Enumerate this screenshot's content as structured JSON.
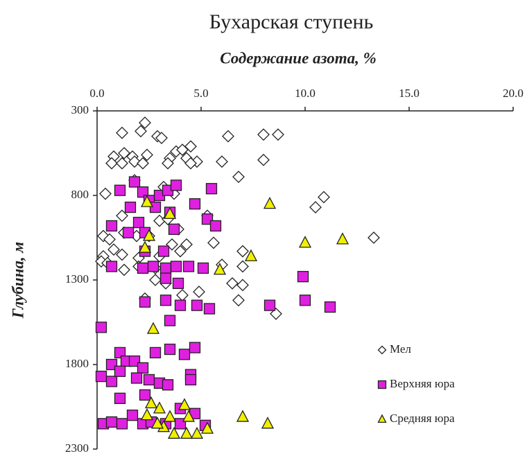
{
  "chart_data": {
    "type": "scatter",
    "title": "Бухарская ступень",
    "x_label": "Содержание азота, %",
    "y_label": "Глубина, м",
    "xlim": [
      0,
      20
    ],
    "ylim": [
      300,
      2300
    ],
    "y_inverted": true,
    "x_axis_position": "top",
    "legend": "right",
    "xticks": [
      {
        "value": 0,
        "label": "0.0"
      },
      {
        "value": 5,
        "label": "5.0"
      },
      {
        "value": 10,
        "label": "10.0"
      },
      {
        "value": 15,
        "label": "15.0"
      },
      {
        "value": 20,
        "label": "20.0"
      }
    ],
    "yticks": [
      300,
      800,
      1300,
      1800,
      2300
    ],
    "series": [
      {
        "name": "Мел",
        "marker": "diamond",
        "color": "#ffffff",
        "x": [
          2.3,
          2.1,
          1.2,
          2.9,
          3.1,
          6.3,
          8.0,
          8.7,
          3.8,
          4.1,
          4.5,
          0.8,
          1.3,
          1.7,
          2.4,
          3.5,
          4.3,
          4.8,
          0.7,
          1.2,
          1.8,
          2.2,
          3.4,
          4.5,
          6.0,
          8.0,
          6.8,
          0.4,
          1.8,
          3.2,
          3.7,
          10.9,
          10.5,
          1.2,
          3.0,
          3.4,
          3.9,
          5.3,
          0.3,
          0.6,
          1.3,
          1.9,
          2.5,
          3.6,
          4.3,
          5.6,
          13.3,
          0.3,
          0.8,
          1.2,
          2.0,
          3.0,
          4.0,
          7.0,
          0.2,
          0.5,
          1.3,
          2.0,
          2.8,
          6.0,
          7.0,
          2.8,
          3.3,
          6.5,
          7.0,
          4.1,
          4.9,
          6.8,
          8.6,
          2.3
        ],
        "values": [
          370,
          420,
          430,
          450,
          460,
          450,
          440,
          440,
          540,
          530,
          510,
          570,
          550,
          570,
          560,
          580,
          580,
          600,
          610,
          610,
          600,
          610,
          610,
          610,
          600,
          590,
          690,
          790,
          710,
          750,
          790,
          810,
          870,
          920,
          950,
          940,
          1000,
          920,
          1040,
          1060,
          1020,
          1040,
          1040,
          1090,
          1090,
          1080,
          1050,
          1160,
          1120,
          1150,
          1170,
          1160,
          1130,
          1130,
          1190,
          1200,
          1240,
          1220,
          1230,
          1210,
          1220,
          1300,
          1320,
          1320,
          1330,
          1390,
          1370,
          1420,
          1500,
          1410
        ]
      },
      {
        "name": "Верхняя юра",
        "marker": "square",
        "color": "#e020e0",
        "x": [
          1.1,
          1.8,
          2.2,
          3.0,
          3.4,
          3.8,
          5.5,
          4.7,
          2.5,
          1.6,
          2.0,
          2.8,
          3.5,
          5.3,
          5.7,
          1.5,
          0.7,
          2.3,
          3.7,
          3.2,
          2.3,
          0.7,
          2.2,
          2.7,
          3.3,
          3.8,
          4.4,
          5.1,
          9.9,
          3.3,
          3.9,
          2.3,
          3.3,
          4.0,
          4.8,
          5.4,
          8.3,
          10.0,
          11.2,
          3.5,
          0.2,
          1.1,
          0.7,
          1.4,
          1.8,
          2.2,
          2.8,
          3.5,
          4.2,
          4.7,
          0.2,
          0.7,
          1.1,
          1.9,
          2.5,
          3.0,
          3.4,
          4.5,
          4.5,
          1.1,
          2.3,
          4.0,
          0.3,
          0.7,
          1.2,
          1.7,
          2.2,
          2.6,
          3.3,
          4.0,
          5.2,
          4.7
        ],
        "values": [
          770,
          720,
          780,
          800,
          770,
          740,
          760,
          850,
          830,
          870,
          960,
          870,
          900,
          940,
          980,
          1020,
          980,
          1020,
          1000,
          1130,
          1130,
          1220,
          1230,
          1220,
          1230,
          1220,
          1220,
          1230,
          1280,
          1290,
          1320,
          1430,
          1420,
          1450,
          1450,
          1470,
          1450,
          1420,
          1460,
          1540,
          1580,
          1730,
          1800,
          1780,
          1780,
          1820,
          1730,
          1710,
          1740,
          1700,
          1870,
          1900,
          1840,
          1880,
          1890,
          1910,
          1920,
          1860,
          1890,
          2000,
          1980,
          2060,
          2150,
          2140,
          2150,
          2100,
          2150,
          2140,
          2150,
          2150,
          2160,
          2090
        ]
      },
      {
        "name": "Средняя юра",
        "marker": "triangle",
        "color": "#f0f000",
        "x": [
          2.4,
          3.5,
          8.3,
          2.5,
          2.3,
          10.0,
          11.8,
          7.4,
          5.9,
          2.7,
          2.6,
          4.2,
          3.0,
          2.4,
          3.5,
          4.4,
          7.0,
          8.2,
          3.2,
          3.7,
          4.3,
          4.8,
          5.3,
          2.9
        ],
        "values": [
          840,
          910,
          850,
          1040,
          1110,
          1080,
          1060,
          1160,
          1240,
          1590,
          2030,
          2040,
          2060,
          2100,
          2110,
          2110,
          2110,
          2150,
          2170,
          2210,
          2210,
          2210,
          2180,
          2150
        ]
      }
    ]
  }
}
